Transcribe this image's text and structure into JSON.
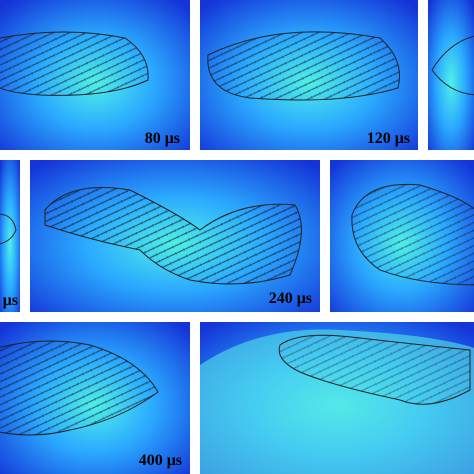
{
  "panels": [
    {
      "label": "80 μs"
    },
    {
      "label": "120 μs"
    },
    {
      "label": "μs"
    },
    {
      "label": "240 μs"
    },
    {
      "label": "400 μs"
    }
  ]
}
